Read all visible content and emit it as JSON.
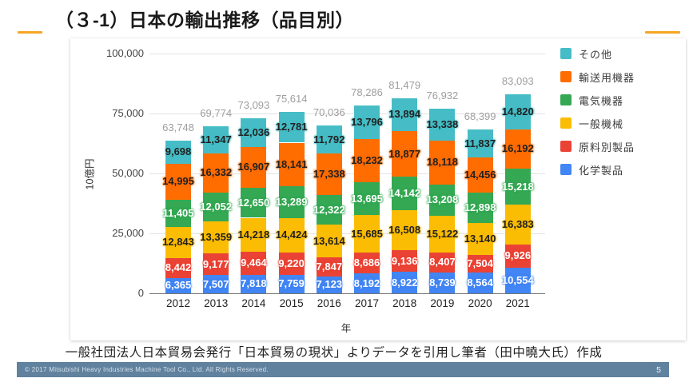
{
  "slide": {
    "title": "（３-1）日本の輸出推移（品目別）",
    "caption": "一般社団法人日本貿易会発行「日本貿易の現状」よりデータを引用し筆者（田中曉大氏）作成",
    "accent_dash_color": "#F5A623"
  },
  "footer": {
    "copyright": "© 2017 Mitsubishi Heavy Industries Machine Tool Co., Ltd.   All Rights Reserved.",
    "page_number": "5",
    "bar_color": "#60829F"
  },
  "chart_data": {
    "type": "bar",
    "stacked": true,
    "stack_order": "bottom-to-top",
    "title": "",
    "xlabel": "年",
    "ylabel": "10億円",
    "ylim": [
      0,
      100000
    ],
    "yticks": [
      0,
      25000,
      50000,
      75000,
      100000
    ],
    "ytick_labels": [
      "0",
      "25,000",
      "50,000",
      "75,000",
      "100,000"
    ],
    "grid": true,
    "legend_position": "right",
    "legend_order_top_to_bottom": [
      "その他",
      "輸送用機器",
      "電気機器",
      "一般機械",
      "原料別製品",
      "化学製品"
    ],
    "categories": [
      "2012",
      "2013",
      "2014",
      "2015",
      "2016",
      "2017",
      "2018",
      "2019",
      "2020",
      "2021"
    ],
    "series": [
      {
        "name": "化学製品",
        "color": "#4285F4",
        "label_color": "#ffffff",
        "values": [
          6365,
          7507,
          7818,
          7759,
          7123,
          8192,
          8922,
          8739,
          8564,
          10554
        ]
      },
      {
        "name": "原料別製品",
        "color": "#EA4335",
        "label_color": "#ffffff",
        "values": [
          8442,
          9177,
          9464,
          9220,
          7847,
          8686,
          9136,
          8407,
          7504,
          9926
        ]
      },
      {
        "name": "一般機械",
        "color": "#FBBC04",
        "label_color": "#212121",
        "values": [
          12843,
          13359,
          14218,
          14424,
          13614,
          15685,
          16508,
          15122,
          13140,
          16383
        ]
      },
      {
        "name": "電気機器",
        "color": "#34A853",
        "label_color": "#ffffff",
        "values": [
          11405,
          12052,
          12650,
          13289,
          12322,
          13695,
          14142,
          13208,
          12898,
          15218
        ]
      },
      {
        "name": "輸送用機器",
        "color": "#FF6D00",
        "label_color": "#212121",
        "values": [
          14995,
          16332,
          16907,
          18141,
          17338,
          18232,
          18877,
          18118,
          14456,
          16192
        ]
      },
      {
        "name": "その他",
        "color": "#46BDC6",
        "label_color": "#212121",
        "values": [
          9698,
          11347,
          12036,
          12781,
          11792,
          13796,
          13894,
          13338,
          11837,
          14820
        ]
      }
    ],
    "totals": [
      63748,
      69774,
      73093,
      75614,
      70036,
      78286,
      81479,
      76932,
      68399,
      83093
    ],
    "total_label_color": "#9E9E9E"
  }
}
